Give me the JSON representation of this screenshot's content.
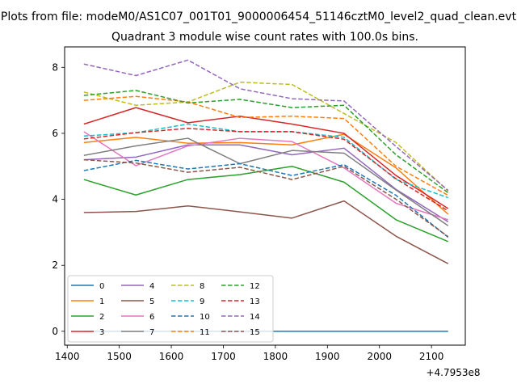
{
  "chart_data": {
    "type": "line",
    "suptitle": "Plots from file: modeM0/AS1C07_001T01_9000006454_51146cztM0_level2_quad_clean.evt",
    "title": "Quadrant 3 module wise count rates with 100.0s bins.",
    "xlabel": "",
    "ylabel": "",
    "x_offset_label": "+4.7953e8",
    "xlim": [
      1395,
      2165
    ],
    "ylim": [
      -0.42,
      8.62
    ],
    "x_ticks": [
      1400,
      1500,
      1600,
      1700,
      1800,
      1900,
      2000,
      2100
    ],
    "x_tick_labels": [
      "1400",
      "1500",
      "1600",
      "1700",
      "1800",
      "1900",
      "2000",
      "2100"
    ],
    "y_ticks": [
      0,
      2,
      4,
      6,
      8
    ],
    "y_tick_labels": [
      "0",
      "2",
      "4",
      "6",
      "8"
    ],
    "x": [
      1432,
      1532,
      1632,
      1732,
      1832,
      1932,
      2032,
      2132
    ],
    "legend_location": "lower-left",
    "series": [
      {
        "name": "0",
        "color": "#1f77b4",
        "dash": "solid",
        "values": [
          0,
          0,
          0,
          0,
          0,
          0,
          0,
          0
        ]
      },
      {
        "name": "1",
        "color": "#ff7f0e",
        "dash": "solid",
        "values": [
          5.72,
          5.88,
          5.7,
          5.72,
          5.65,
          5.97,
          4.95,
          3.55
        ]
      },
      {
        "name": "2",
        "color": "#2ca02c",
        "dash": "solid",
        "values": [
          4.6,
          4.13,
          4.6,
          4.75,
          5.0,
          4.52,
          3.38,
          2.72
        ]
      },
      {
        "name": "3",
        "color": "#d62728",
        "dash": "solid",
        "values": [
          6.28,
          6.78,
          6.32,
          6.52,
          6.28,
          6.0,
          4.72,
          3.72
        ]
      },
      {
        "name": "4",
        "color": "#9467bd",
        "dash": "solid",
        "values": [
          5.2,
          5.28,
          5.65,
          5.65,
          5.35,
          5.55,
          4.3,
          3.32
        ]
      },
      {
        "name": "5",
        "color": "#8c564b",
        "dash": "solid",
        "values": [
          3.6,
          3.63,
          3.8,
          3.62,
          3.43,
          3.95,
          2.88,
          2.05
        ]
      },
      {
        "name": "6",
        "color": "#e377c2",
        "dash": "solid",
        "values": [
          6.05,
          5.02,
          5.62,
          5.85,
          5.75,
          4.95,
          3.88,
          3.38
        ]
      },
      {
        "name": "7",
        "color": "#7f7f7f",
        "dash": "solid",
        "values": [
          5.33,
          5.62,
          5.85,
          5.08,
          5.48,
          5.4,
          4.28,
          3.2
        ]
      },
      {
        "name": "8",
        "color": "#bcbd22",
        "dash": "dashed",
        "values": [
          7.25,
          6.85,
          6.95,
          7.55,
          7.48,
          6.6,
          5.72,
          4.25
        ]
      },
      {
        "name": "9",
        "color": "#17becf",
        "dash": "dashed",
        "values": [
          5.92,
          6.02,
          6.28,
          6.05,
          6.05,
          5.88,
          4.6,
          4.05
        ]
      },
      {
        "name": "10",
        "color": "#1f77b4",
        "dash": "dashed",
        "values": [
          4.87,
          5.18,
          4.92,
          5.08,
          4.72,
          5.05,
          4.12,
          2.85
        ]
      },
      {
        "name": "11",
        "color": "#ff7f0e",
        "dash": "dashed",
        "values": [
          7.0,
          7.12,
          6.95,
          6.48,
          6.52,
          6.45,
          5.0,
          4.12
        ]
      },
      {
        "name": "12",
        "color": "#2ca02c",
        "dash": "dashed",
        "values": [
          7.15,
          7.3,
          6.92,
          7.03,
          6.78,
          6.85,
          5.35,
          4.2
        ]
      },
      {
        "name": "13",
        "color": "#d62728",
        "dash": "dashed",
        "values": [
          5.83,
          6.02,
          6.15,
          6.05,
          6.05,
          5.82,
          4.62,
          3.65
        ]
      },
      {
        "name": "14",
        "color": "#9467bd",
        "dash": "dashed",
        "values": [
          8.1,
          7.75,
          8.22,
          7.35,
          7.05,
          6.98,
          5.6,
          4.27
        ]
      },
      {
        "name": "15",
        "color": "#8c564b",
        "dash": "dashed",
        "values": [
          5.2,
          5.1,
          4.82,
          4.97,
          4.6,
          5.0,
          4.0,
          2.87
        ]
      }
    ]
  }
}
